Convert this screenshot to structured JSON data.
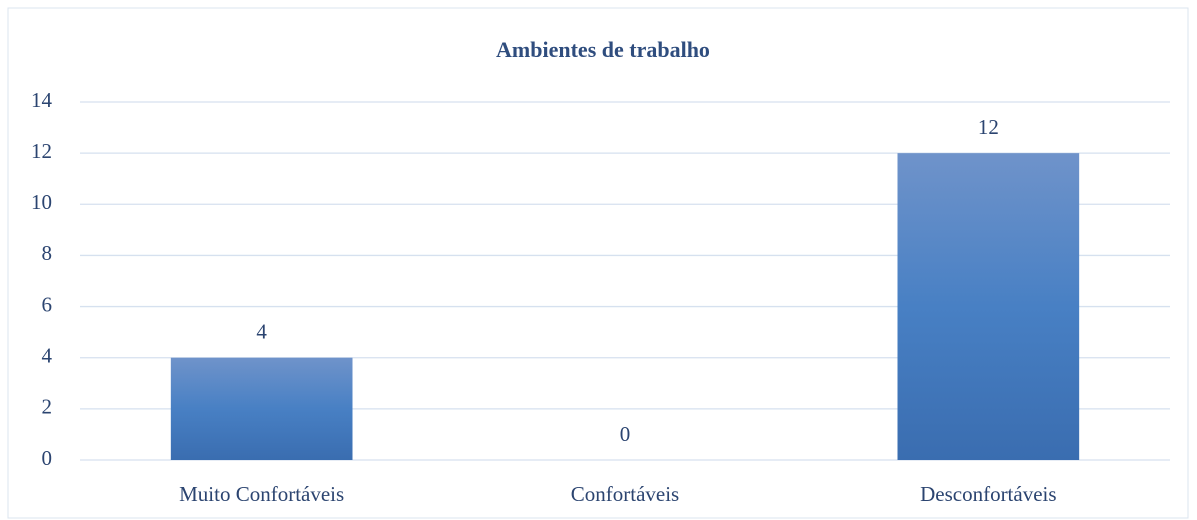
{
  "chart_data": {
    "type": "bar",
    "title": "Ambientes de trabalho",
    "categories": [
      "Muito Confortáveis",
      "Confortáveis",
      "Desconfortáveis"
    ],
    "values": [
      4,
      0,
      12
    ],
    "color": "#4a7cc0",
    "ylim": [
      0,
      14
    ],
    "yticks": [
      0,
      2,
      4,
      6,
      8,
      10,
      12,
      14
    ],
    "grid": true
  }
}
